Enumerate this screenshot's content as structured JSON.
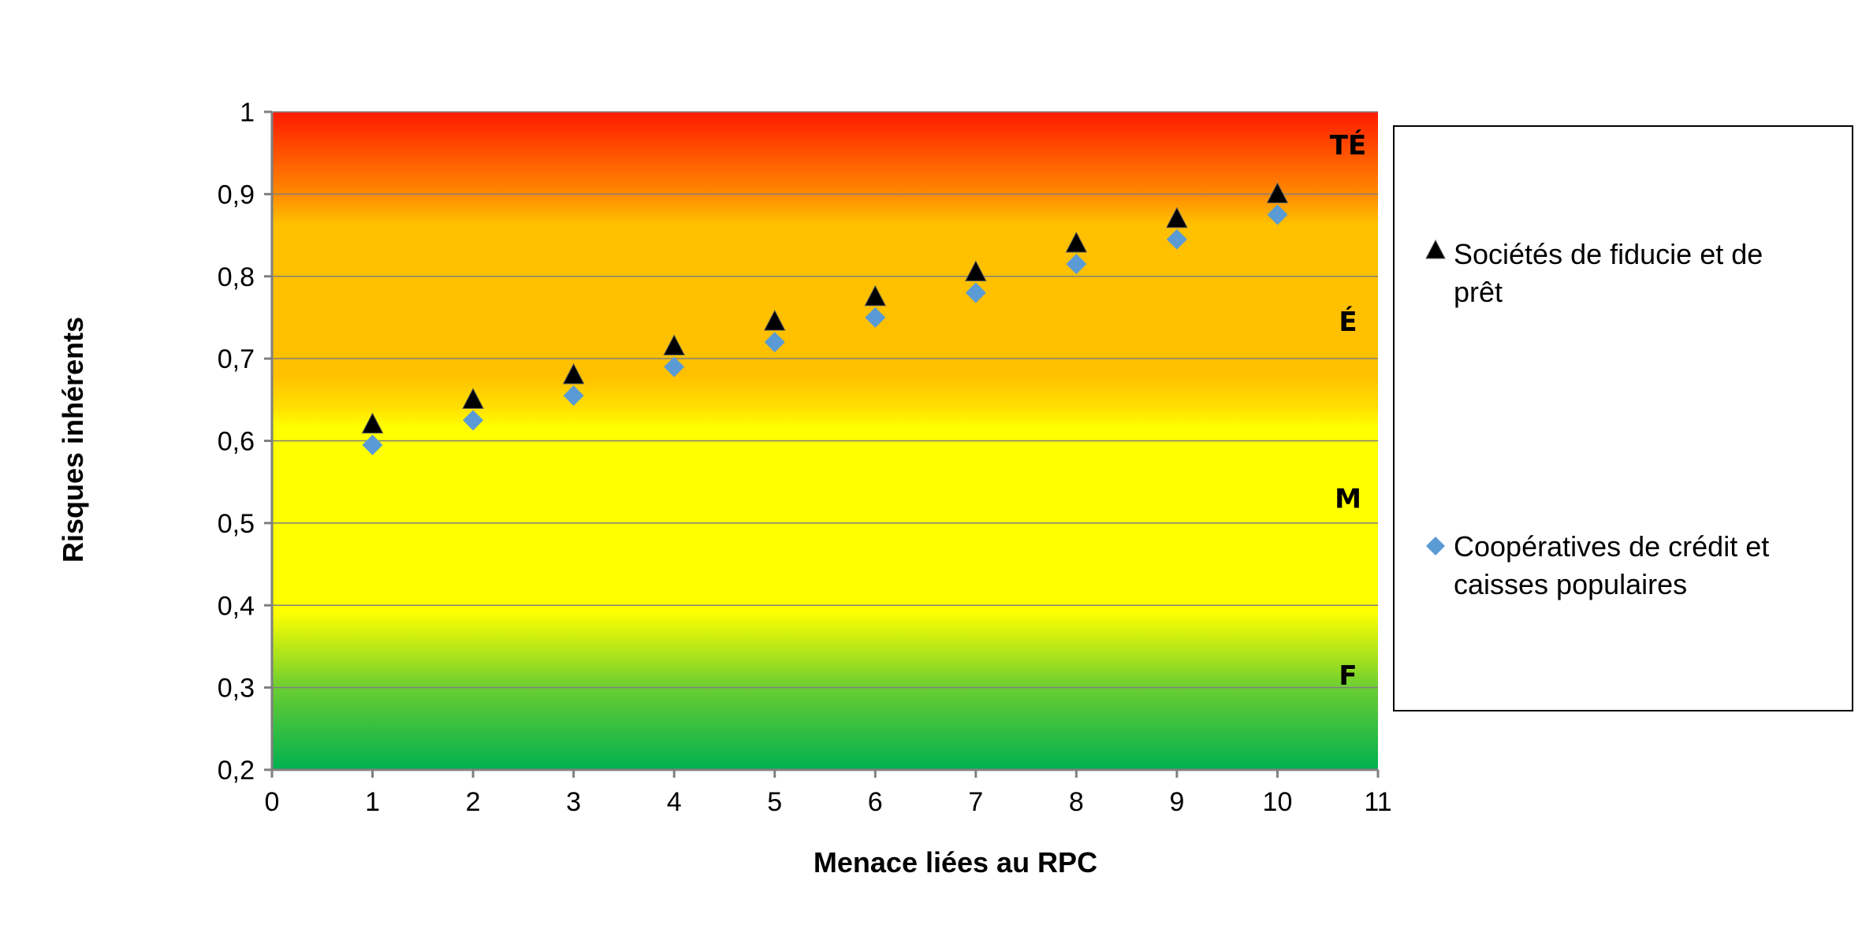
{
  "chart_data": {
    "type": "scatter",
    "xlabel": "Menace liées au RPC",
    "ylabel": "Risques inhérents",
    "xlim": [
      0,
      11
    ],
    "ylim": [
      0.2,
      1
    ],
    "x_ticks": [
      "0",
      "1",
      "2",
      "3",
      "4",
      "5",
      "6",
      "7",
      "8",
      "9",
      "10",
      "11"
    ],
    "y_ticks": [
      "0,2",
      "0,3",
      "0,4",
      "0,5",
      "0,6",
      "0,7",
      "0,8",
      "0,9",
      "1"
    ],
    "grid": "horizontal",
    "legend_position": "right",
    "zones": [
      {
        "label": "TÉ",
        "from": 0.9,
        "to": 1.0
      },
      {
        "label": "É",
        "from": 0.65,
        "to": 0.9
      },
      {
        "label": "M",
        "from": 0.38,
        "to": 0.65
      },
      {
        "label": "F",
        "from": 0.2,
        "to": 0.38
      }
    ],
    "series": [
      {
        "name_line1": "Sociétés de fiducie et de",
        "name_line2": "prêt",
        "marker": "triangle",
        "color": "#000000",
        "x": [
          1,
          2,
          3,
          4,
          5,
          6,
          7,
          8,
          9,
          10
        ],
        "y": [
          0.62,
          0.65,
          0.68,
          0.715,
          0.745,
          0.775,
          0.805,
          0.84,
          0.87,
          0.9
        ]
      },
      {
        "name_line1": "Coopératives de crédit et",
        "name_line2": "caisses populaires",
        "marker": "diamond",
        "color": "#5b9bd5",
        "x": [
          1,
          2,
          3,
          4,
          5,
          6,
          7,
          8,
          9,
          10
        ],
        "y": [
          0.595,
          0.625,
          0.655,
          0.69,
          0.72,
          0.75,
          0.78,
          0.815,
          0.845,
          0.875
        ]
      }
    ],
    "colors": {
      "very_high": "#ff1a00",
      "high": "#ffc000",
      "medium": "#ffff00",
      "low": "#00b050",
      "gridline": "#808080",
      "axis": "#7f7f7f"
    }
  }
}
